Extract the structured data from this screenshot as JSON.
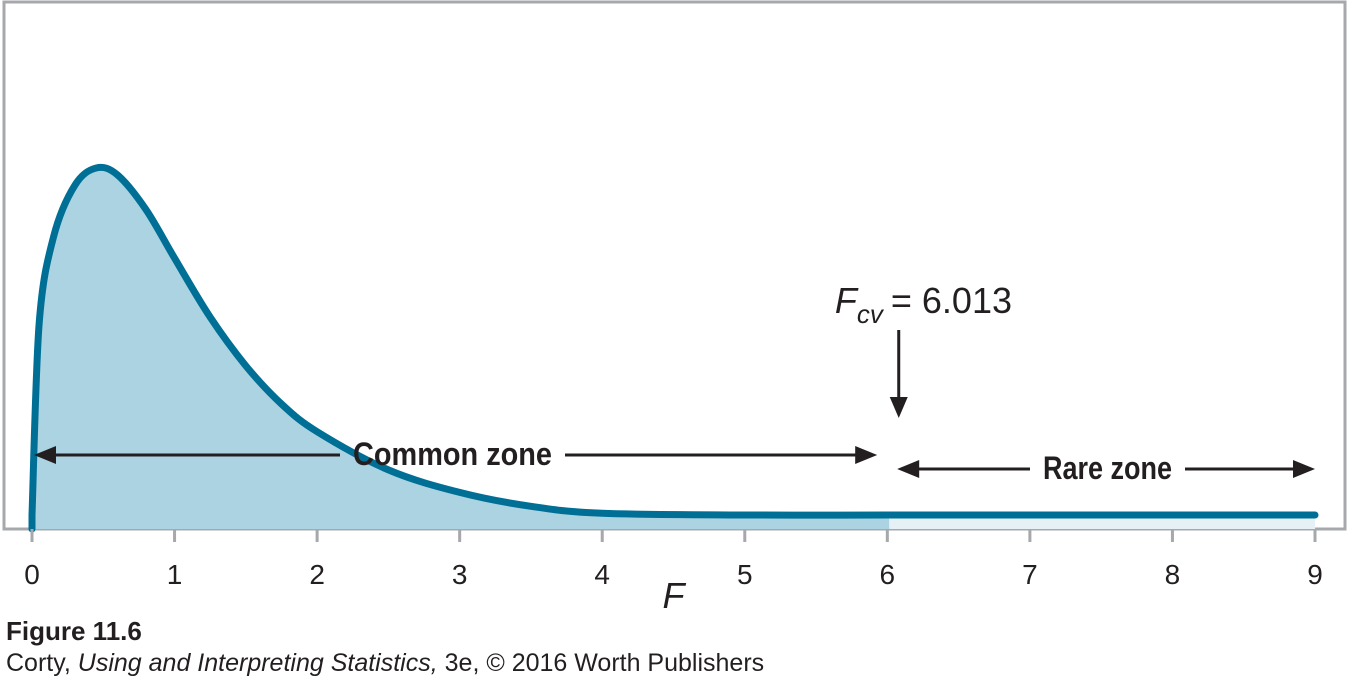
{
  "chart_data": {
    "type": "area",
    "distribution": "F",
    "x_axis_label": "F",
    "xlim": [
      0,
      9
    ],
    "x_ticks": [
      "0",
      "1",
      "2",
      "3",
      "4",
      "5",
      "6",
      "7",
      "8",
      "9"
    ],
    "curve_points": [
      {
        "x": 0.0,
        "y": 0.0
      },
      {
        "x": 0.05,
        "y": 0.55
      },
      {
        "x": 0.15,
        "y": 0.8
      },
      {
        "x": 0.3,
        "y": 0.95
      },
      {
        "x": 0.45,
        "y": 1.0
      },
      {
        "x": 0.6,
        "y": 0.98
      },
      {
        "x": 0.8,
        "y": 0.88
      },
      {
        "x": 1.0,
        "y": 0.74
      },
      {
        "x": 1.25,
        "y": 0.57
      },
      {
        "x": 1.5,
        "y": 0.43
      },
      {
        "x": 1.75,
        "y": 0.32
      },
      {
        "x": 2.0,
        "y": 0.24
      },
      {
        "x": 2.5,
        "y": 0.13
      },
      {
        "x": 3.0,
        "y": 0.065
      },
      {
        "x": 3.5,
        "y": 0.025
      },
      {
        "x": 4.0,
        "y": 0.005
      },
      {
        "x": 5.0,
        "y": 0.0
      },
      {
        "x": 6.0,
        "y": 0.0
      },
      {
        "x": 7.0,
        "y": 0.0
      },
      {
        "x": 8.0,
        "y": 0.0
      },
      {
        "x": 9.0,
        "y": 0.0
      }
    ],
    "critical_value": 6.013,
    "critical_value_label": {
      "symbol": "F",
      "subscript": "cv",
      "equals": "= 6.013"
    },
    "zones": [
      {
        "label": "Common zone",
        "from": 0,
        "to": 6.013
      },
      {
        "label": "Rare zone",
        "from": 6.013,
        "to": 9
      }
    ],
    "colors": {
      "curve": "#006f96",
      "common_fill": "#acd3e1",
      "rare_fill": "#e6f1f6",
      "frame": "#a6a8ab",
      "text": "#231f20"
    }
  },
  "caption": {
    "figure_label": "Figure 11.6",
    "author": "Corty,",
    "book_title": "Using and Interpreting Statistics,",
    "edition_publisher": "3e, © 2016 Worth Publishers"
  }
}
